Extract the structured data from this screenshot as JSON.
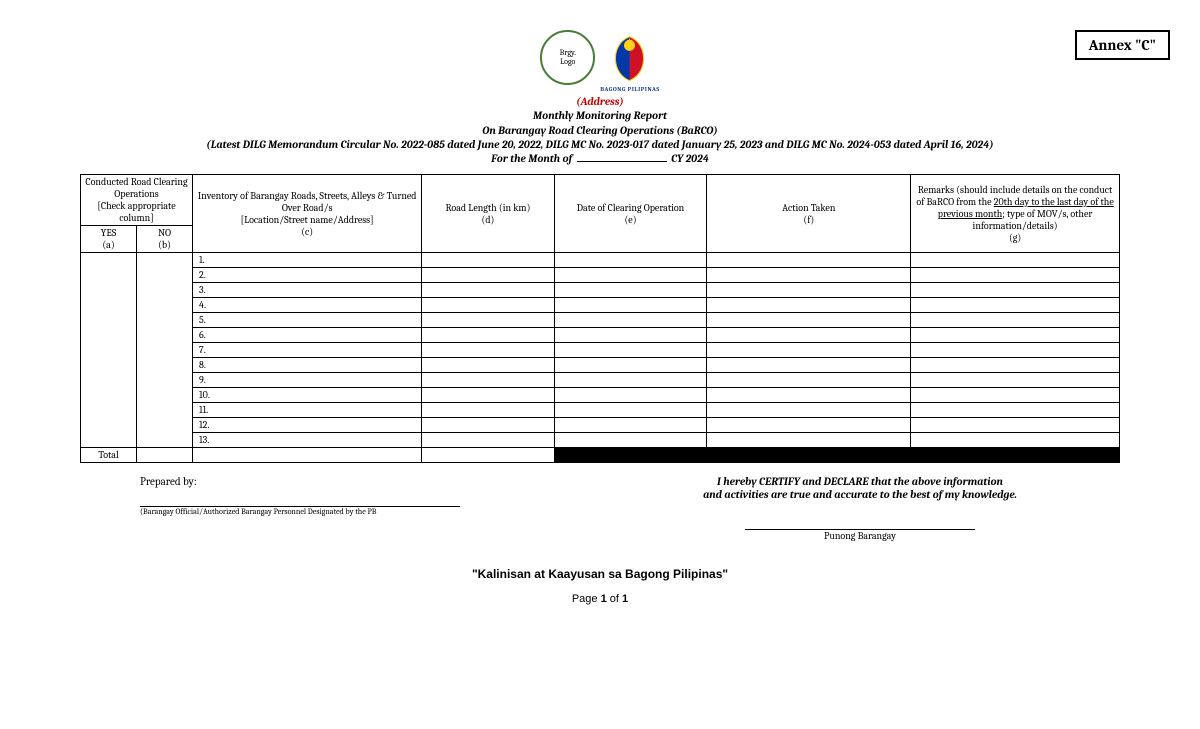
{
  "annex_label": "Annex \"C\"",
  "logos": {
    "brgy_placeholder": "Brgy.\nLogo",
    "bagong_label": "BAGONG PILIPINAS",
    "colors": {
      "brgy_border": "#4a7c3a",
      "ph_blue": "#0038a8",
      "ph_red": "#ce1126",
      "ph_yellow": "#fcd116",
      "bagong_text": "#1a3a8c"
    }
  },
  "header": {
    "address": "(Address)",
    "title1": "Monthly Monitoring Report",
    "title2": "On Barangay Road Clearing Operations (BaRCO)",
    "circular": "(Latest DILG Memorandum Circular No. 2022-085 dated June 20, 2022, DILG MC No. 2023-017 dated January 25, 2023 and DILG MC No. 2024-053 dated April 16, 2024)",
    "month_prefix": "For the Month of",
    "month_suffix": "CY 2024"
  },
  "table": {
    "columns": {
      "conducted_header": "Conducted Road Clearing Operations",
      "conducted_sub": "[Check appropriate column]",
      "yes": "YES",
      "yes_sub": "(a)",
      "no": "NO",
      "no_sub": "(b)",
      "inventory": "Inventory of Barangay Roads, Streets, Alleys & Turned Over Road/s",
      "inventory_sub": "[Location/Street name/Address]",
      "inventory_letter": "(c)",
      "length": "Road Length (in km)",
      "length_letter": "(d)",
      "date": "Date of Clearing Operation",
      "date_letter": "(e)",
      "action": "Action Taken",
      "action_letter": "(f)",
      "remarks_l1": "Remarks (should include details on the conduct of BaRCO from the ",
      "remarks_l2": "20th day to the last day of the previous month",
      "remarks_l3": ";  type of MOV/s, other information/details)",
      "remarks_letter": "(g)"
    },
    "row_count": 13,
    "rows": [
      "1.",
      "2.",
      "3.",
      "4.",
      "5.",
      "6.",
      "7.",
      "8.",
      "9.",
      "10.",
      "11.",
      "12.",
      "13."
    ],
    "total": "Total",
    "black_fill": "#000000"
  },
  "signatures": {
    "prepared_by": "Prepared by:",
    "prepared_caption": "(Barangay Official/Authorized Barangay Personnel Designated by the PB",
    "certify_l1": "I hereby CERTIFY and DECLARE that the above information",
    "certify_l2": "and activities are true and accurate to the best of my knowledge.",
    "pb": "Punong Barangay"
  },
  "tagline": "\"Kalinisan at Kaayusan sa Bagong Pilipinas\"",
  "page": {
    "prefix": "Page ",
    "current": "1",
    "of": " of ",
    "total": "1"
  }
}
